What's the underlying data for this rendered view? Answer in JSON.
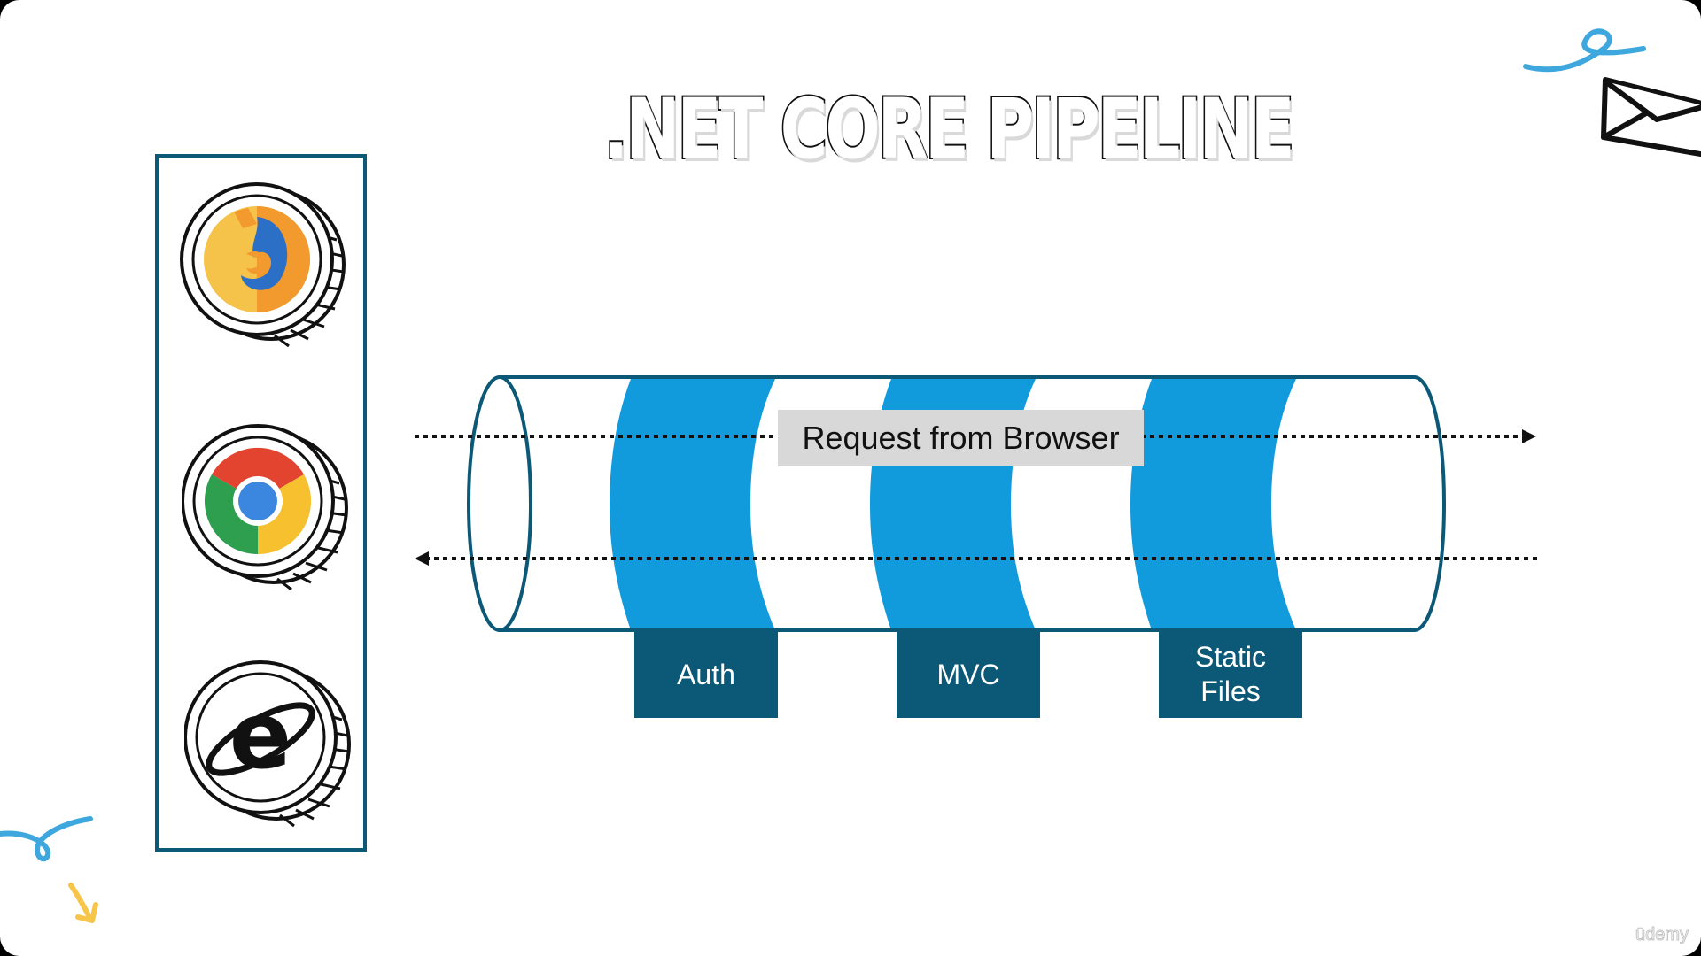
{
  "slide": {
    "title": ".NET CORE PIPELINE",
    "request_label": "Request from Browser",
    "watermark": "ūdemy"
  },
  "browsers": [
    {
      "name": "firefox-icon"
    },
    {
      "name": "chrome-icon"
    },
    {
      "name": "internet-explorer-icon"
    }
  ],
  "middleware": [
    {
      "lines": [
        "Auth"
      ]
    },
    {
      "lines": [
        "MVC"
      ]
    },
    {
      "lines": [
        "Static",
        "Files"
      ]
    }
  ],
  "colors": {
    "band_blue": "#129bdc",
    "box_teal": "#0b5877",
    "pipe_outline": "#0b5877",
    "doodle_blue": "#3ea7dd",
    "doodle_yellow": "#f7c54a"
  }
}
